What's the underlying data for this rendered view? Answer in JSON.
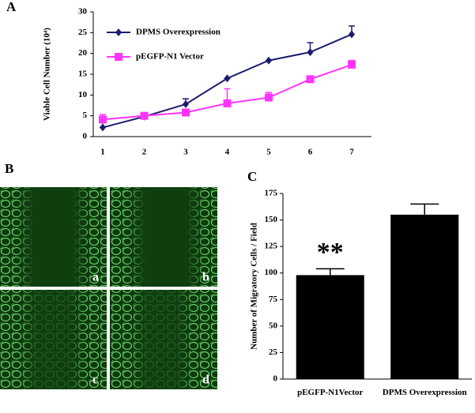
{
  "panel_labels": [
    "A",
    "B",
    "C"
  ],
  "image_labels": [
    "a",
    "b",
    "c",
    "d"
  ],
  "chart_data": [
    {
      "type": "line",
      "ylabel": "Viable Cell Number (10⁴)",
      "categories": [
        "1",
        "2",
        "3",
        "4",
        "5",
        "6",
        "7"
      ],
      "ylim": [
        0,
        30
      ],
      "yticks": [
        0,
        5,
        10,
        15,
        20,
        25,
        30
      ],
      "legend": "upper left",
      "series": [
        {
          "name": "DPMS Overexpression",
          "color": "#1c1c6e",
          "marker": "diamond",
          "values": [
            2.2,
            4.8,
            7.8,
            14,
            18.3,
            20.3,
            24.6
          ],
          "errors": [
            0,
            0,
            1.3,
            0,
            0,
            2.3,
            2
          ]
        },
        {
          "name": "pEGFP-N1 Vector",
          "color": "#ff33ff",
          "marker": "square",
          "values": [
            4.1,
            5,
            5.8,
            8,
            9.4,
            13.8,
            17.3
          ],
          "errors": [
            1.2,
            0.4,
            0.5,
            3.5,
            1.2,
            0,
            1
          ]
        }
      ]
    },
    {
      "type": "bar",
      "ylabel": "Number of Migratory Cells / Field",
      "categories": [
        "pEGFP-N1Vector",
        "DPMS Overexpression"
      ],
      "values": [
        98,
        155
      ],
      "errors": [
        6,
        10
      ],
      "color": "#000000",
      "ylim": [
        0,
        175
      ],
      "yticks": [
        0,
        25,
        50,
        75,
        100,
        125,
        150,
        175
      ],
      "annotation": "**"
    }
  ]
}
